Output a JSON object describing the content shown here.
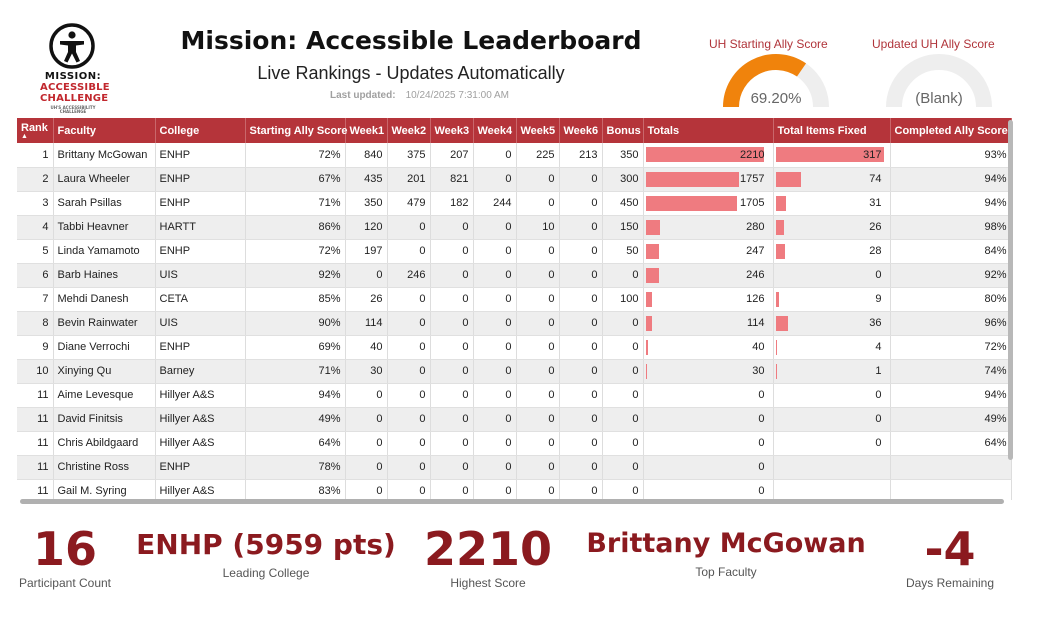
{
  "logo": {
    "line1": "MISSION:",
    "line2": "ACCESSIBLE",
    "line3": "CHALLENGE",
    "line4": "UH'S ACCESSIBILITY CHALLENGE"
  },
  "header": {
    "title": "Mission: Accessible Leaderboard",
    "subtitle": "Live Rankings - Updates Automatically",
    "updated_label": "Last updated:",
    "updated_value": "10/24/2025 7:31:00 AM"
  },
  "gauges": [
    {
      "title": "UH Starting Ally Score",
      "value_text": "69.20%",
      "fraction": 0.692,
      "color": "#f0830c"
    },
    {
      "title": "Updated UH Ally Score",
      "value_text": "(Blank)",
      "fraction": 0,
      "color": "#f0830c"
    }
  ],
  "table": {
    "columns": [
      "Rank",
      "Faculty",
      "College",
      "Starting Ally Score",
      "Week1",
      "Week2",
      "Week3",
      "Week4",
      "Week5",
      "Week6",
      "Bonus",
      "Totals",
      "Total Items Fixed",
      "Completed Ally Score"
    ],
    "max_total": 2210,
    "max_fixed": 317,
    "rows": [
      {
        "rank": "1",
        "faculty": "Brittany McGowan",
        "college": "ENHP",
        "start": "72%",
        "w1": "840",
        "w2": "375",
        "w3": "207",
        "w4": "0",
        "w5": "225",
        "w6": "213",
        "bonus": "350",
        "total": 2210,
        "total_text": "2210",
        "fixed": 317,
        "fixed_text": "317",
        "completed": "93%"
      },
      {
        "rank": "2",
        "faculty": "Laura Wheeler",
        "college": "ENHP",
        "start": "67%",
        "w1": "435",
        "w2": "201",
        "w3": "821",
        "w4": "0",
        "w5": "0",
        "w6": "0",
        "bonus": "300",
        "total": 1757,
        "total_text": "1757",
        "fixed": 74,
        "fixed_text": "74",
        "completed": "94%"
      },
      {
        "rank": "3",
        "faculty": "Sarah Psillas",
        "college": "ENHP",
        "start": "71%",
        "w1": "350",
        "w2": "479",
        "w3": "182",
        "w4": "244",
        "w5": "0",
        "w6": "0",
        "bonus": "450",
        "total": 1705,
        "total_text": "1705",
        "fixed": 31,
        "fixed_text": "31",
        "completed": "94%"
      },
      {
        "rank": "4",
        "faculty": "Tabbi Heavner",
        "college": "HARTT",
        "start": "86%",
        "w1": "120",
        "w2": "0",
        "w3": "0",
        "w4": "0",
        "w5": "10",
        "w6": "0",
        "bonus": "150",
        "total": 280,
        "total_text": "280",
        "fixed": 26,
        "fixed_text": "26",
        "completed": "98%"
      },
      {
        "rank": "5",
        "faculty": "Linda Yamamoto",
        "college": "ENHP",
        "start": "72%",
        "w1": "197",
        "w2": "0",
        "w3": "0",
        "w4": "0",
        "w5": "0",
        "w6": "0",
        "bonus": "50",
        "total": 247,
        "total_text": "247",
        "fixed": 28,
        "fixed_text": "28",
        "completed": "84%"
      },
      {
        "rank": "6",
        "faculty": "Barb Haines",
        "college": "UIS",
        "start": "92%",
        "w1": "0",
        "w2": "246",
        "w3": "0",
        "w4": "0",
        "w5": "0",
        "w6": "0",
        "bonus": "0",
        "total": 246,
        "total_text": "246",
        "fixed": 0,
        "fixed_text": "0",
        "completed": "92%"
      },
      {
        "rank": "7",
        "faculty": "Mehdi Danesh",
        "college": "CETA",
        "start": "85%",
        "w1": "26",
        "w2": "0",
        "w3": "0",
        "w4": "0",
        "w5": "0",
        "w6": "0",
        "bonus": "100",
        "total": 126,
        "total_text": "126",
        "fixed": 9,
        "fixed_text": "9",
        "completed": "80%"
      },
      {
        "rank": "8",
        "faculty": "Bevin Rainwater",
        "college": "UIS",
        "start": "90%",
        "w1": "114",
        "w2": "0",
        "w3": "0",
        "w4": "0",
        "w5": "0",
        "w6": "0",
        "bonus": "0",
        "total": 114,
        "total_text": "114",
        "fixed": 36,
        "fixed_text": "36",
        "completed": "96%"
      },
      {
        "rank": "9",
        "faculty": "Diane Verrochi",
        "college": "ENHP",
        "start": "69%",
        "w1": "40",
        "w2": "0",
        "w3": "0",
        "w4": "0",
        "w5": "0",
        "w6": "0",
        "bonus": "0",
        "total": 40,
        "total_text": "40",
        "fixed": 4,
        "fixed_text": "4",
        "completed": "72%"
      },
      {
        "rank": "10",
        "faculty": "Xinying Qu",
        "college": "Barney",
        "start": "71%",
        "w1": "30",
        "w2": "0",
        "w3": "0",
        "w4": "0",
        "w5": "0",
        "w6": "0",
        "bonus": "0",
        "total": 30,
        "total_text": "30",
        "fixed": 1,
        "fixed_text": "1",
        "completed": "74%"
      },
      {
        "rank": "11",
        "faculty": "Aime Levesque",
        "college": "Hillyer A&S",
        "start": "94%",
        "w1": "0",
        "w2": "0",
        "w3": "0",
        "w4": "0",
        "w5": "0",
        "w6": "0",
        "bonus": "0",
        "total": 0,
        "total_text": "0",
        "fixed": 0,
        "fixed_text": "0",
        "completed": "94%"
      },
      {
        "rank": "11",
        "faculty": "David Finitsis",
        "college": "Hillyer A&S",
        "start": "49%",
        "w1": "0",
        "w2": "0",
        "w3": "0",
        "w4": "0",
        "w5": "0",
        "w6": "0",
        "bonus": "0",
        "total": 0,
        "total_text": "0",
        "fixed": 0,
        "fixed_text": "0",
        "completed": "49%"
      },
      {
        "rank": "11",
        "faculty": "Chris Abildgaard",
        "college": "Hillyer A&S",
        "start": "64%",
        "w1": "0",
        "w2": "0",
        "w3": "0",
        "w4": "0",
        "w5": "0",
        "w6": "0",
        "bonus": "0",
        "total": 0,
        "total_text": "0",
        "fixed": 0,
        "fixed_text": "0",
        "completed": "64%"
      },
      {
        "rank": "11",
        "faculty": "Christine Ross",
        "college": "ENHP",
        "start": "78%",
        "w1": "0",
        "w2": "0",
        "w3": "0",
        "w4": "0",
        "w5": "0",
        "w6": "0",
        "bonus": "0",
        "total": 0,
        "total_text": "0",
        "fixed": 0,
        "fixed_text": "",
        "completed": ""
      },
      {
        "rank": "11",
        "faculty": "Gail M. Syring",
        "college": "Hillyer A&S",
        "start": "83%",
        "w1": "0",
        "w2": "0",
        "w3": "0",
        "w4": "0",
        "w5": "0",
        "w6": "0",
        "bonus": "0",
        "total": 0,
        "total_text": "0",
        "fixed": 0,
        "fixed_text": "",
        "completed": ""
      }
    ]
  },
  "kpis": [
    {
      "value": "16",
      "label": "Participant Count"
    },
    {
      "value": "ENHP (5959 pts)",
      "label": "Leading College"
    },
    {
      "value": "2210",
      "label": "Highest Score"
    },
    {
      "value": "Brittany McGowan",
      "label": "Top Faculty"
    },
    {
      "value": "-4",
      "label": "Days Remaining"
    }
  ]
}
